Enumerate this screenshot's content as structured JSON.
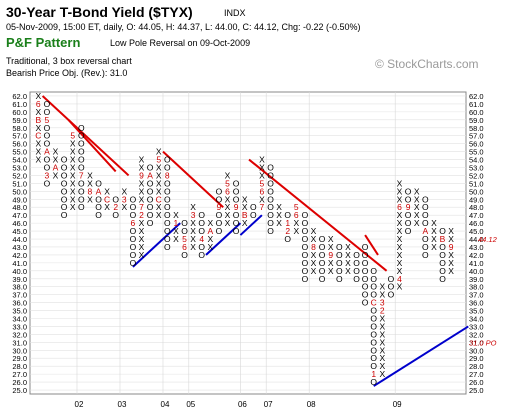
{
  "header": {
    "title": "30-Year T-Bond Yield ($TYX)",
    "exchange": "INDX",
    "stats": "05-Nov-2009, 15:00 ET, daily, O: 44.05, H: 44.37, L: 44.00, C: 44.12, Chg: -0.22 (-0.50%)",
    "pattern_title": "P&F Pattern",
    "pattern_desc": "Low Pole Reversal on 09-Oct-2009",
    "method": "Traditional, 3 box reversal chart",
    "objective": "Bearish Price Obj. (Rev.): 31.0",
    "watermark": "© StockCharts.com"
  },
  "chart_data": {
    "type": "point-and-figure",
    "box_size": 1,
    "reversal": 3,
    "y_ticks": [
      "62.0",
      "61.0",
      "60.0",
      "59.0",
      "58.0",
      "57.0",
      "56.0",
      "55.0",
      "54.0",
      "53.0",
      "52.0",
      "51.0",
      "50.0",
      "49.0",
      "48.0",
      "47.0",
      "46.0",
      "45.0",
      "44.0",
      "43.0",
      "42.0",
      "41.0",
      "40.0",
      "39.0",
      "38.0",
      "37.0",
      "36.0",
      "35.0",
      "34.0",
      "33.0",
      "32.0",
      "31.0",
      "30.0",
      "29.0",
      "28.0",
      "27.0",
      "26.0",
      "25.0"
    ],
    "ylim": [
      25,
      62
    ],
    "x_labels": [
      "02",
      "03",
      "04",
      "05",
      "06",
      "07",
      "08",
      "09"
    ],
    "last_price_label": "44.12",
    "price_objective_label": "31.0 PO",
    "colors": {
      "x": "#000000",
      "o": "#000000",
      "month_marker": "#cc0000",
      "resistance": "#dd0000",
      "support": "#0000cc",
      "highlight": "#cc0000"
    },
    "columns": [
      {
        "type": "X",
        "low": 54,
        "high": 62
      },
      {
        "type": "O",
        "low": 51,
        "high": 61
      },
      {
        "type": "X",
        "low": 52,
        "high": 55
      },
      {
        "type": "O",
        "low": 47,
        "high": 54
      },
      {
        "type": "X",
        "low": 48,
        "high": 57
      },
      {
        "type": "O",
        "low": 48,
        "high": 58
      },
      {
        "type": "X",
        "low": 49,
        "high": 52
      },
      {
        "type": "O",
        "low": 47,
        "high": 51
      },
      {
        "type": "X",
        "low": 48,
        "high": 50
      },
      {
        "type": "O",
        "low": 47,
        "high": 49
      },
      {
        "type": "X",
        "low": 48,
        "high": 50
      },
      {
        "type": "O",
        "low": 41,
        "high": 49
      },
      {
        "type": "X",
        "low": 42,
        "high": 54
      },
      {
        "type": "O",
        "low": 46,
        "high": 53
      },
      {
        "type": "X",
        "low": 47,
        "high": 55
      },
      {
        "type": "O",
        "low": 43,
        "high": 54
      },
      {
        "type": "X",
        "low": 44,
        "high": 47
      },
      {
        "type": "O",
        "low": 42,
        "high": 46
      },
      {
        "type": "X",
        "low": 43,
        "high": 48
      },
      {
        "type": "O",
        "low": 42,
        "high": 47
      },
      {
        "type": "X",
        "low": 43,
        "high": 46
      },
      {
        "type": "O",
        "low": 45,
        "high": 50
      },
      {
        "type": "X",
        "low": 46,
        "high": 52
      },
      {
        "type": "O",
        "low": 45,
        "high": 51
      },
      {
        "type": "X",
        "low": 46,
        "high": 49
      },
      {
        "type": "O",
        "low": 47,
        "high": 48
      },
      {
        "type": "X",
        "low": 48,
        "high": 54
      },
      {
        "type": "O",
        "low": 45,
        "high": 53
      },
      {
        "type": "X",
        "low": 46,
        "high": 48
      },
      {
        "type": "O",
        "low": 44,
        "high": 47
      },
      {
        "type": "X",
        "low": 45,
        "high": 48
      },
      {
        "type": "O",
        "low": 39,
        "high": 47
      },
      {
        "type": "X",
        "low": 40,
        "high": 45
      },
      {
        "type": "O",
        "low": 39,
        "high": 44
      },
      {
        "type": "X",
        "low": 40,
        "high": 44
      },
      {
        "type": "O",
        "low": 39,
        "high": 43
      },
      {
        "type": "X",
        "low": 40,
        "high": 43
      },
      {
        "type": "O",
        "low": 39,
        "high": 42
      },
      {
        "type": "O",
        "low": 36,
        "high": 43
      },
      {
        "type": "O",
        "low": 26,
        "high": 40
      },
      {
        "type": "X",
        "low": 27,
        "high": 38
      },
      {
        "type": "O",
        "low": 37,
        "high": 39
      },
      {
        "type": "X",
        "low": 38,
        "high": 51
      },
      {
        "type": "O",
        "low": 45,
        "high": 50
      },
      {
        "type": "X",
        "low": 46,
        "high": 50
      },
      {
        "type": "O",
        "low": 42,
        "high": 49
      },
      {
        "type": "X",
        "low": 43,
        "high": 46
      },
      {
        "type": "O",
        "low": 39,
        "high": 45
      },
      {
        "type": "X",
        "low": 40,
        "high": 45
      }
    ],
    "month_markers": [
      {
        "col": 0,
        "price": 61,
        "text": "6"
      },
      {
        "col": 0,
        "price": 59,
        "text": "B"
      },
      {
        "col": 0,
        "price": 57,
        "text": "C"
      },
      {
        "col": 1,
        "price": 59,
        "text": "5"
      },
      {
        "col": 1,
        "price": 55,
        "text": "A"
      },
      {
        "col": 1,
        "price": 52,
        "text": "3"
      },
      {
        "col": 2,
        "price": 53,
        "text": "A"
      },
      {
        "col": 4,
        "price": 57,
        "text": "5"
      },
      {
        "col": 5,
        "price": 52,
        "text": "7"
      },
      {
        "col": 6,
        "price": 50,
        "text": "8"
      },
      {
        "col": 6,
        "price": 48,
        "text": "B"
      },
      {
        "col": 7,
        "price": 50,
        "text": "A"
      },
      {
        "col": 8,
        "price": 49,
        "text": "C"
      },
      {
        "col": 9,
        "price": 48,
        "text": "2"
      },
      {
        "col": 10,
        "price": 49,
        "text": "3"
      },
      {
        "col": 11,
        "price": 46,
        "text": "6"
      },
      {
        "col": 12,
        "price": 52,
        "text": "9"
      },
      {
        "col": 12,
        "price": 48,
        "text": "7"
      },
      {
        "col": 12,
        "price": 47,
        "text": "2"
      },
      {
        "col": 13,
        "price": 52,
        "text": "A"
      },
      {
        "col": 14,
        "price": 54,
        "text": "5"
      },
      {
        "col": 14,
        "price": 49,
        "text": "C"
      },
      {
        "col": 15,
        "price": 52,
        "text": "8"
      },
      {
        "col": 16,
        "price": 46,
        "text": "1"
      },
      {
        "col": 17,
        "price": 44,
        "text": "5"
      },
      {
        "col": 17,
        "price": 43,
        "text": "6"
      },
      {
        "col": 18,
        "price": 47,
        "text": "3"
      },
      {
        "col": 19,
        "price": 44,
        "text": "4"
      },
      {
        "col": 20,
        "price": 45,
        "text": "A"
      },
      {
        "col": 21,
        "price": 48,
        "text": "9"
      },
      {
        "col": 22,
        "price": 51,
        "text": "5"
      },
      {
        "col": 22,
        "price": 50,
        "text": "6"
      },
      {
        "col": 23,
        "price": 48,
        "text": "9"
      },
      {
        "col": 24,
        "price": 47,
        "text": "B"
      },
      {
        "col": 26,
        "price": 51,
        "text": "5"
      },
      {
        "col": 26,
        "price": 50,
        "text": "6"
      },
      {
        "col": 26,
        "price": 48,
        "text": "7"
      },
      {
        "col": 29,
        "price": 46,
        "text": "1"
      },
      {
        "col": 29,
        "price": 45,
        "text": "2"
      },
      {
        "col": 30,
        "price": 48,
        "text": "5"
      },
      {
        "col": 30,
        "price": 47,
        "text": "6"
      },
      {
        "col": 32,
        "price": 43,
        "text": "8"
      },
      {
        "col": 34,
        "price": 42,
        "text": "9"
      },
      {
        "col": 39,
        "price": 36,
        "text": "C"
      },
      {
        "col": 39,
        "price": 27,
        "text": "1"
      },
      {
        "col": 40,
        "price": 36,
        "text": "3"
      },
      {
        "col": 40,
        "price": 35,
        "text": "2"
      },
      {
        "col": 42,
        "price": 48,
        "text": "6"
      },
      {
        "col": 42,
        "price": 39,
        "text": "4"
      },
      {
        "col": 43,
        "price": 48,
        "text": "9"
      },
      {
        "col": 45,
        "price": 45,
        "text": "A"
      },
      {
        "col": 47,
        "price": 44,
        "text": "B"
      },
      {
        "col": 48,
        "price": 43,
        "text": "9"
      }
    ],
    "resistance_lines": [
      {
        "from": {
          "col": 0.5,
          "price": 62
        },
        "to": {
          "col": 10.5,
          "price": 52
        }
      },
      {
        "from": {
          "col": 3.5,
          "price": 59
        },
        "to": {
          "col": 9,
          "price": 52.5
        }
      },
      {
        "from": {
          "col": 14.5,
          "price": 55
        },
        "to": {
          "col": 21.5,
          "price": 48
        }
      },
      {
        "from": {
          "col": 24.5,
          "price": 54
        },
        "to": {
          "col": 40.5,
          "price": 40
        }
      },
      {
        "from": {
          "col": 38,
          "price": 44.5
        },
        "to": {
          "col": 39.5,
          "price": 42
        }
      }
    ],
    "support_lines": [
      {
        "from": {
          "col": 11,
          "price": 40.5
        },
        "to": {
          "col": 16.5,
          "price": 46
        }
      },
      {
        "from": {
          "col": 19.5,
          "price": 42
        },
        "to": {
          "col": 23.5,
          "price": 46
        }
      },
      {
        "from": {
          "col": 23.5,
          "price": 44.5
        },
        "to": {
          "col": 26,
          "price": 47
        }
      },
      {
        "from": {
          "col": 39,
          "price": 25.5
        },
        "to": {
          "col": 50,
          "price": 33
        }
      }
    ]
  }
}
